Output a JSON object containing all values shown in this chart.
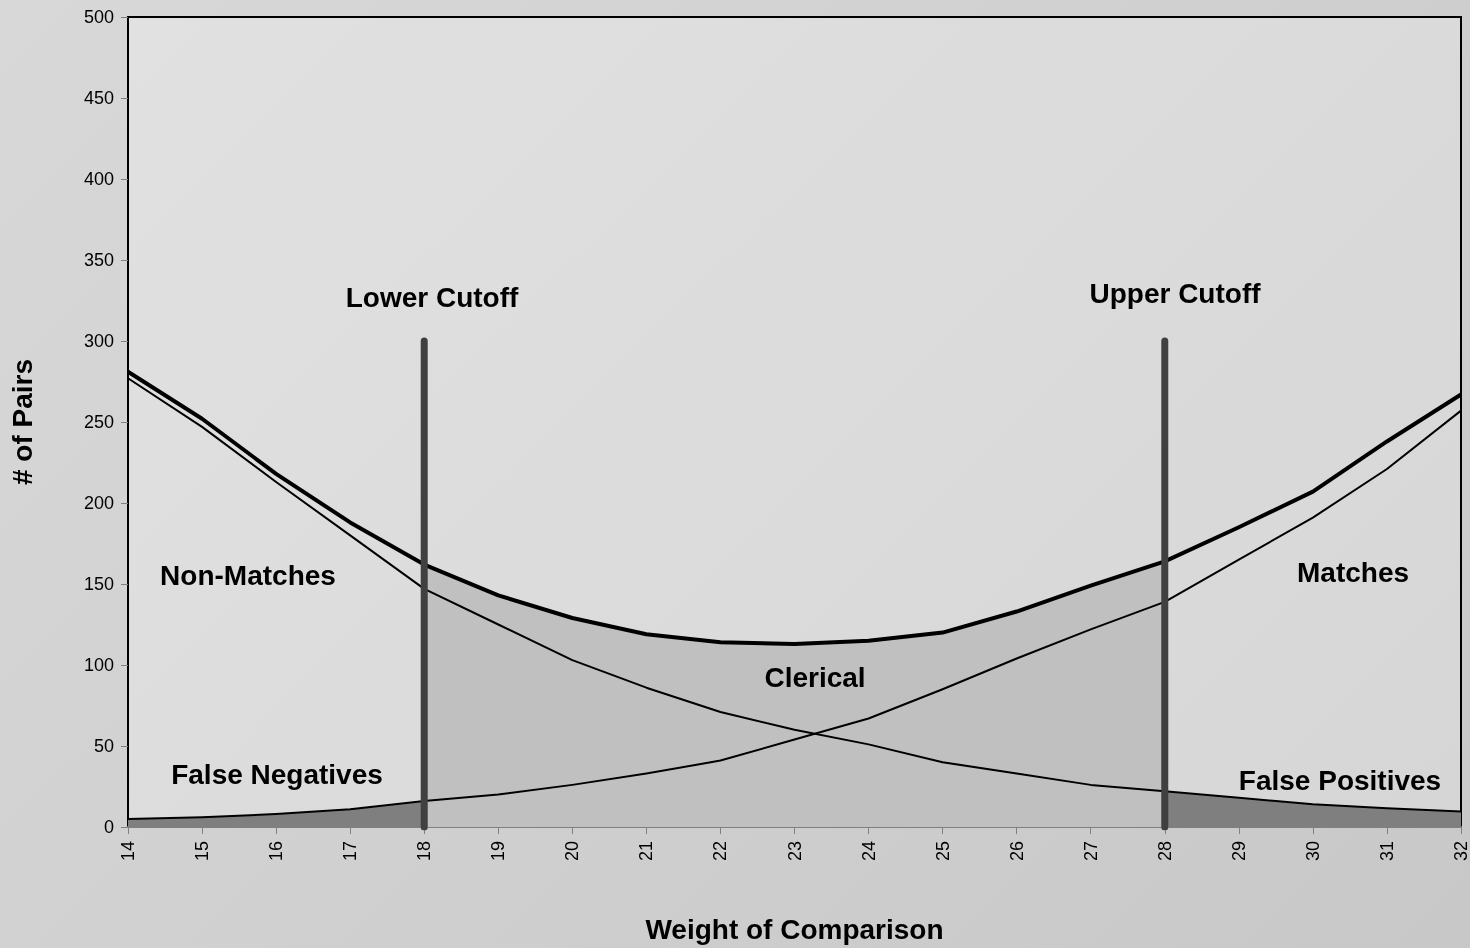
{
  "chart_data": {
    "type": "line",
    "xlabel": "Weight of Comparison",
    "ylabel": "# of Pairs",
    "xlim": [
      14,
      32
    ],
    "xticks": [
      14,
      15,
      16,
      17,
      18,
      19,
      20,
      21,
      22,
      23,
      24,
      25,
      26,
      27,
      28,
      29,
      30,
      31,
      32
    ],
    "ylim": [
      0,
      500
    ],
    "yticks": [
      0,
      50,
      100,
      150,
      200,
      250,
      300,
      350,
      400,
      450,
      500
    ],
    "grid": false,
    "marker": "none",
    "line_style": "solid",
    "series": [
      {
        "type": "area",
        "color": "#c0c0c0",
        "x": [
          18,
          19,
          20,
          21,
          22,
          23,
          24,
          25,
          26,
          27,
          28
        ],
        "values": [
          162,
          143,
          129,
          119,
          114,
          113,
          115,
          120,
          133,
          149,
          164
        ]
      },
      {
        "type": "area",
        "color": "#7f7f7f",
        "x": [
          14,
          15,
          16,
          17,
          18
        ],
        "values": [
          5,
          6,
          8,
          11,
          16
        ]
      },
      {
        "type": "area",
        "color": "#7f7f7f",
        "x": [
          28,
          29,
          30,
          31,
          32
        ],
        "values": [
          22,
          18,
          14,
          11.5,
          9.5
        ]
      },
      {
        "color": "#000000",
        "x": [
          14,
          15,
          16,
          17,
          18,
          19,
          20,
          21,
          22,
          23,
          24,
          25,
          26,
          27,
          28,
          29,
          30,
          31,
          32
        ],
        "values": [
          277,
          247,
          213,
          180,
          147,
          125,
          103,
          86,
          71,
          60,
          51,
          40,
          33,
          26,
          22,
          18,
          14,
          11.5,
          9.5
        ]
      },
      {
        "color": "#000000",
        "x": [
          14,
          15,
          16,
          17,
          18,
          19,
          20,
          21,
          22,
          23,
          24,
          25,
          26,
          27,
          28,
          29,
          30,
          31,
          32
        ],
        "values": [
          5,
          6,
          8,
          11,
          16,
          20,
          26,
          33,
          41,
          54,
          67,
          85,
          104,
          122,
          139,
          165,
          191,
          221,
          257
        ]
      },
      {
        "color": "#000000",
        "x": [
          14,
          15,
          16,
          17,
          18,
          19,
          20,
          21,
          22,
          23,
          24,
          25,
          26,
          27,
          28,
          29,
          30,
          31,
          32
        ],
        "values": [
          281,
          252,
          218,
          188,
          162,
          143,
          129,
          119,
          114,
          113,
          115,
          120,
          133,
          149,
          164,
          185,
          207,
          238,
          267
        ]
      },
      {
        "type": "line",
        "color": "#404040",
        "x": [
          18,
          18
        ],
        "values": [
          0,
          300
        ]
      },
      {
        "type": "line",
        "color": "#404040",
        "x": [
          28,
          28
        ],
        "values": [
          0,
          300
        ]
      }
    ],
    "annotations": [
      "Lower Cutoff",
      "Upper Cutoff",
      "Non-Matches",
      "Matches",
      "Clerical",
      "False Negatives",
      "False Positives"
    ]
  }
}
